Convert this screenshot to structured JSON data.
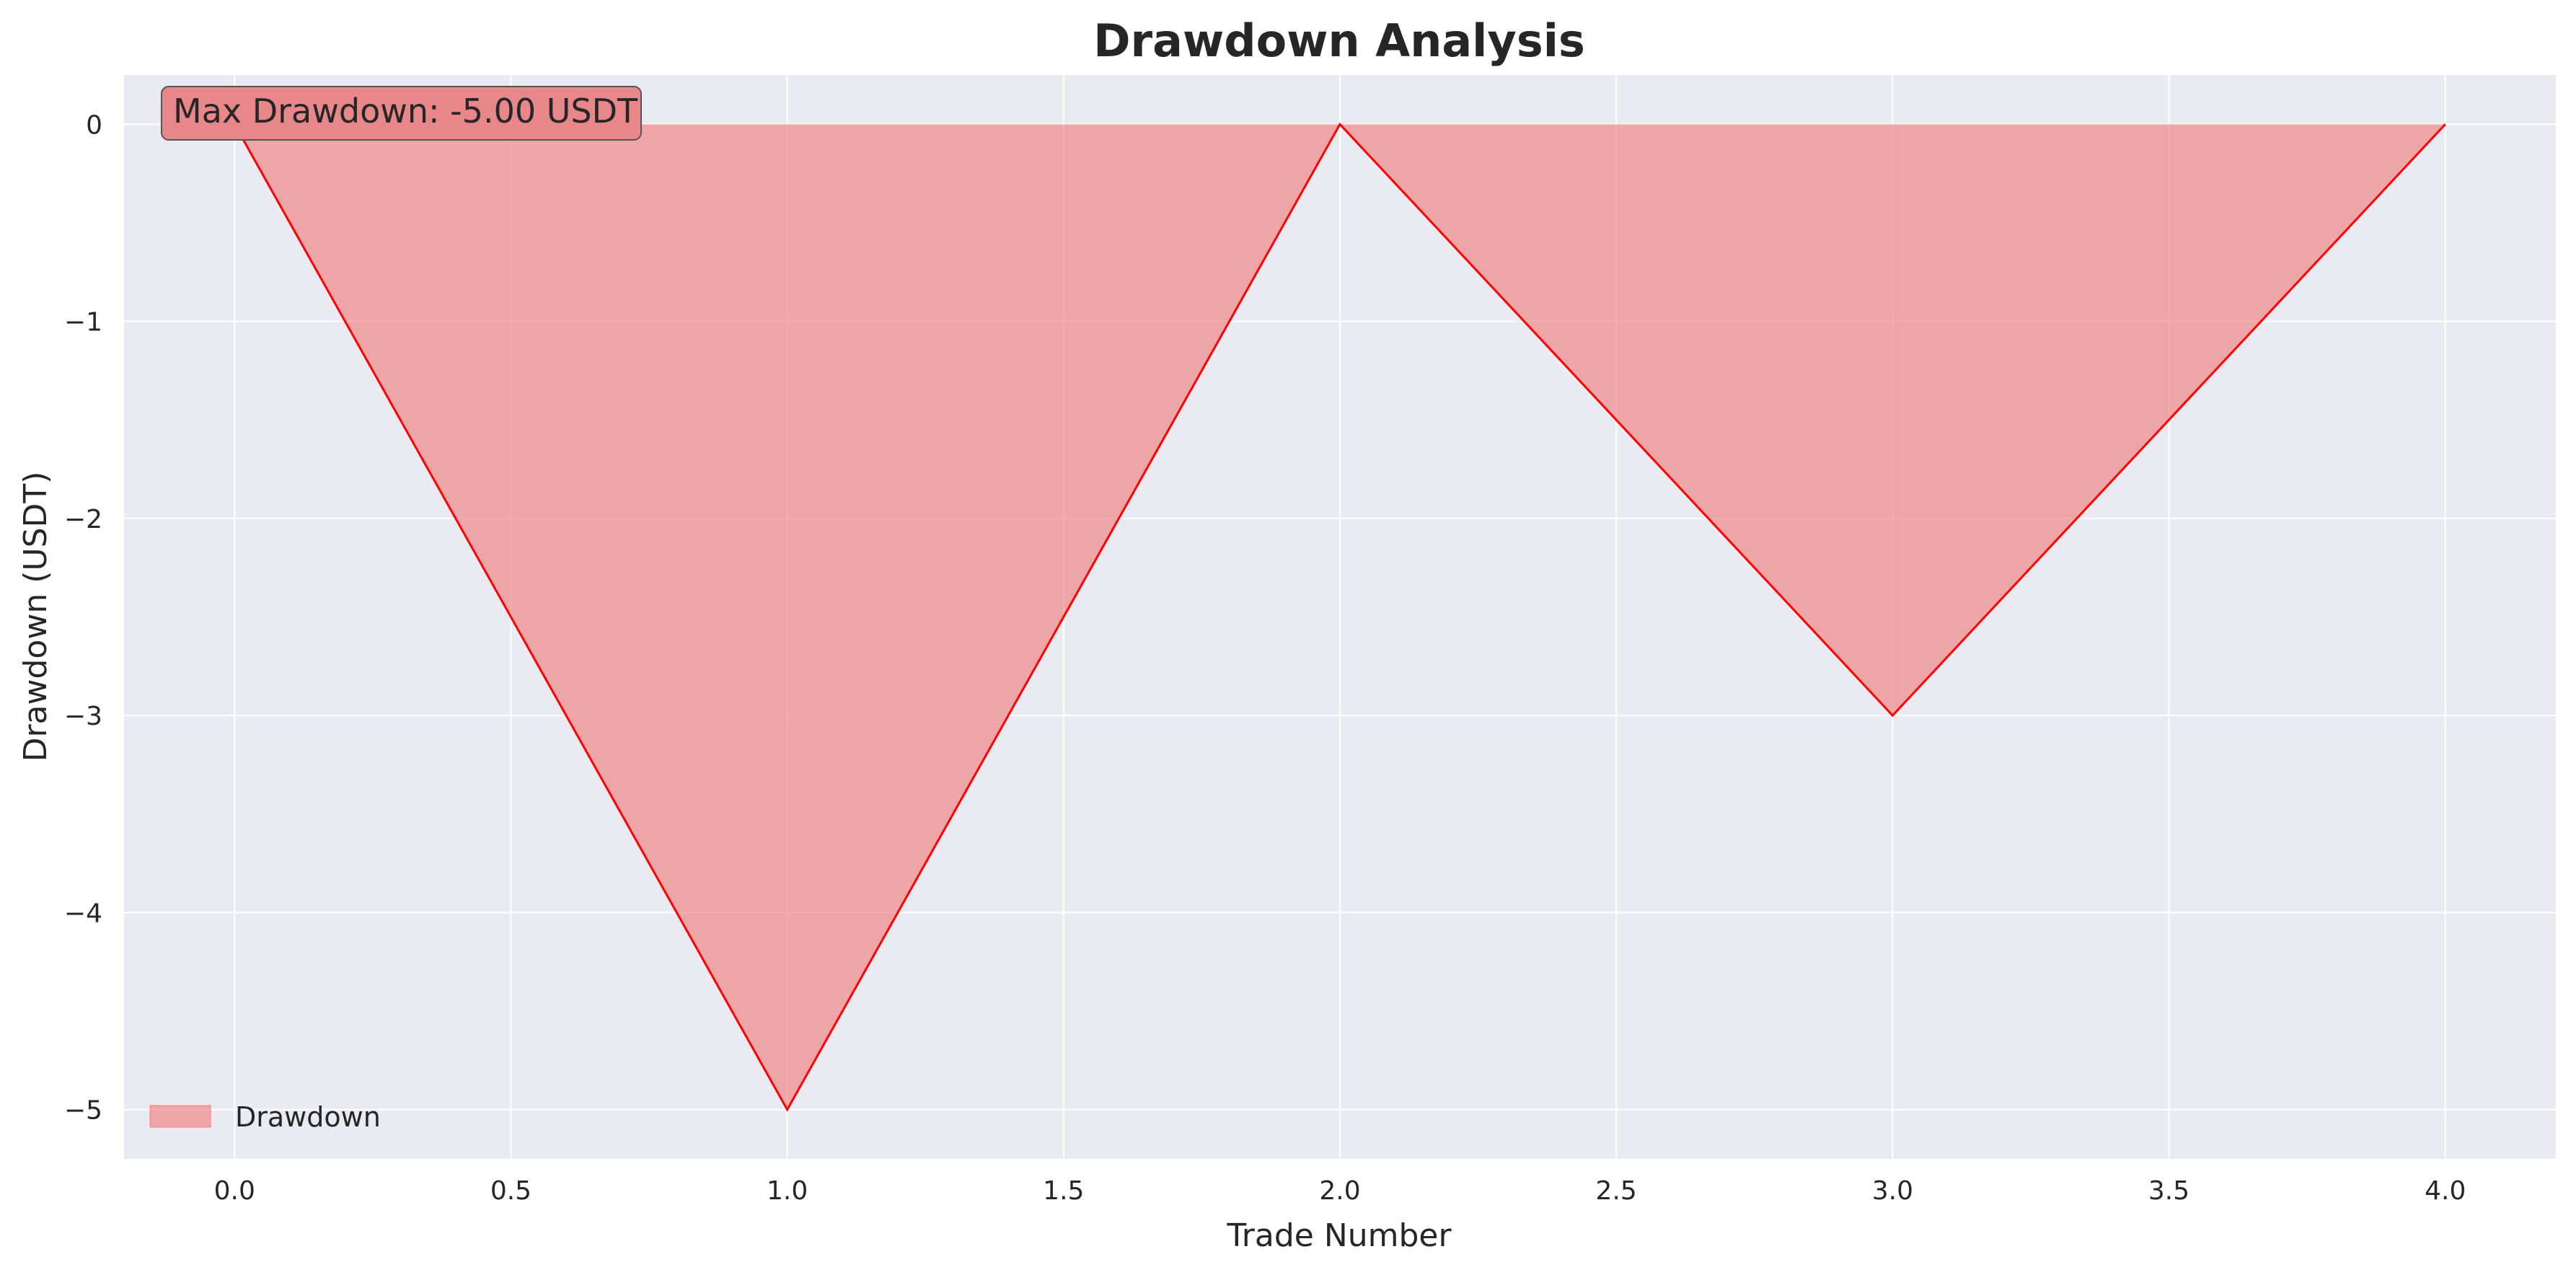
{
  "chart_data": {
    "type": "area",
    "title": "Drawdown Analysis",
    "xlabel": "Trade Number",
    "ylabel": "Drawdown (USDT)",
    "x": [
      0,
      1,
      2,
      3,
      4
    ],
    "series": [
      {
        "name": "Drawdown",
        "values": [
          0,
          -5,
          0,
          -3,
          0
        ],
        "line_color": "#ff0000",
        "fill_color": "#f08080"
      }
    ],
    "xlim": [
      -0.2,
      4.2
    ],
    "ylim": [
      -5.25,
      0.25
    ],
    "xticks": [
      {
        "value": 0.0,
        "label": "0.0"
      },
      {
        "value": 0.5,
        "label": "0.5"
      },
      {
        "value": 1.0,
        "label": "1.0"
      },
      {
        "value": 1.5,
        "label": "1.5"
      },
      {
        "value": 2.0,
        "label": "2.0"
      },
      {
        "value": 2.5,
        "label": "2.5"
      },
      {
        "value": 3.0,
        "label": "3.0"
      },
      {
        "value": 3.5,
        "label": "3.5"
      },
      {
        "value": 4.0,
        "label": "4.0"
      }
    ],
    "yticks": [
      {
        "value": 0,
        "label": "0"
      },
      {
        "value": -1,
        "label": "−1"
      },
      {
        "value": -2,
        "label": "−2"
      },
      {
        "value": -3,
        "label": "−3"
      },
      {
        "value": -4,
        "label": "−4"
      },
      {
        "value": -5,
        "label": "−5"
      }
    ],
    "grid": true,
    "legend": {
      "position": "lower-left",
      "entries": [
        "Drawdown"
      ]
    },
    "annotation": {
      "text": "Max Drawdown: -5.00 USDT",
      "position": "top-left"
    },
    "colors": {
      "plot_background": "#eaeaf2",
      "grid": "#ffffff",
      "text": "#262626"
    }
  }
}
